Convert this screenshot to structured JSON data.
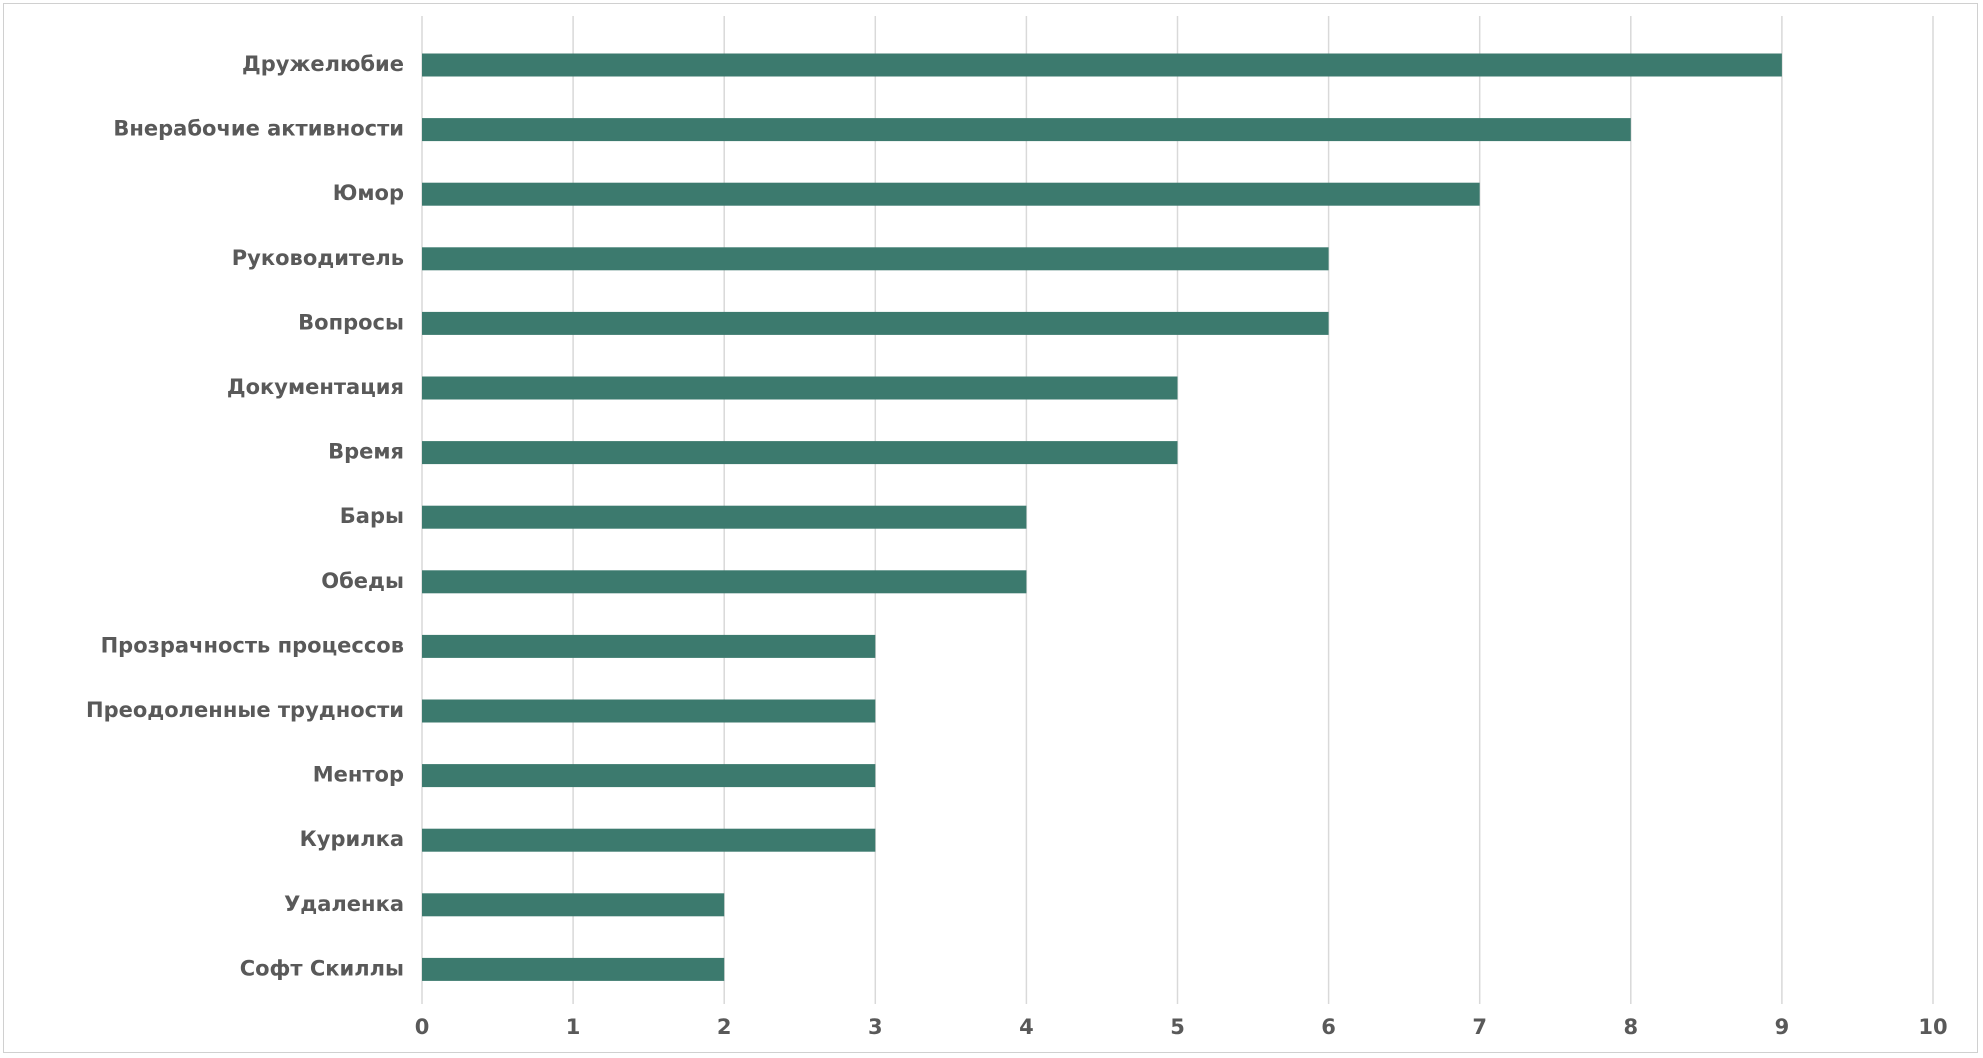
{
  "chart_data": {
    "type": "bar",
    "orientation": "horizontal",
    "categories": [
      "Дружелюбие",
      "Внерабочие активности",
      "Юмор",
      "Руководитель",
      "Вопросы",
      "Документация",
      "Время",
      "Бары",
      "Обеды",
      "Прозрачность процессов",
      "Преодоленные трудности",
      "Ментор",
      "Курилка",
      "Удаленка",
      "Софт Скиллы"
    ],
    "values": [
      9,
      8,
      7,
      6,
      6,
      5,
      5,
      4,
      4,
      3,
      3,
      3,
      3,
      2,
      2
    ],
    "xlim": [
      0,
      10
    ],
    "xticks": [
      "0",
      "1",
      "2",
      "3",
      "4",
      "5",
      "6",
      "7",
      "8",
      "9",
      "10"
    ],
    "title": "",
    "xlabel": "",
    "ylabel": "",
    "grid": "vertical",
    "legend": "none",
    "bar_color": "#3c7a6e"
  }
}
